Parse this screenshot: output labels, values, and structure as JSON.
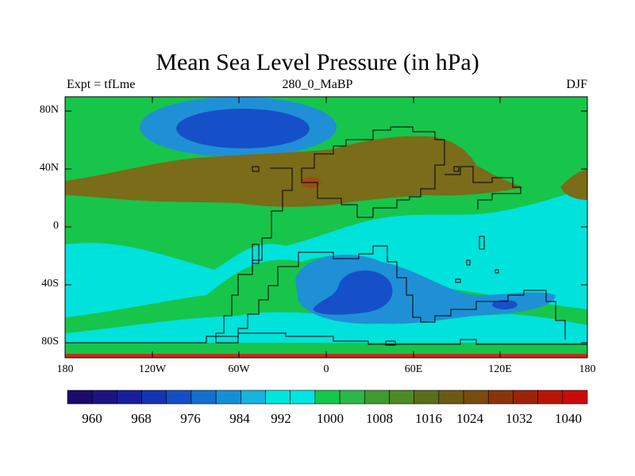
{
  "title": "Mean Sea Level Pressure (in hPa)",
  "subtitle_left": "Expt = tfLme",
  "subtitle_center": "280_0_MaBP",
  "subtitle_right": "DJF",
  "y_axis_labels": [
    "80N",
    "40N",
    "0",
    "40S",
    "80S"
  ],
  "x_axis_labels": [
    "180",
    "120W",
    "60W",
    "0",
    "60E",
    "120E",
    "180"
  ],
  "colorbar": {
    "labels": [
      "960",
      "968",
      "976",
      "984",
      "992",
      "1000",
      "1008",
      "1016",
      "1024",
      "1032",
      "1040"
    ],
    "colors": [
      "#1c0a6e",
      "#1c1385",
      "#1a1e9e",
      "#1433b3",
      "#1450c4",
      "#1470cf",
      "#1490d8",
      "#19b3dd",
      "#00e6dc",
      "#00e6e0",
      "#14c84b",
      "#2cb84b",
      "#3f9a2f",
      "#4e8a25",
      "#5b6e19",
      "#6b5a12",
      "#7a4a0e",
      "#8a340a",
      "#9c2508",
      "#b81708",
      "#cc0a0a"
    ]
  },
  "map_colors": {
    "deep_low": "#1650c8",
    "low": "#1f90d6",
    "light_low": "#00e2dc",
    "mid": "#17c54b",
    "high": "#7a6c18",
    "very_high": "#9a4e10",
    "edge": "#c0301e",
    "coast": "#000000"
  }
}
